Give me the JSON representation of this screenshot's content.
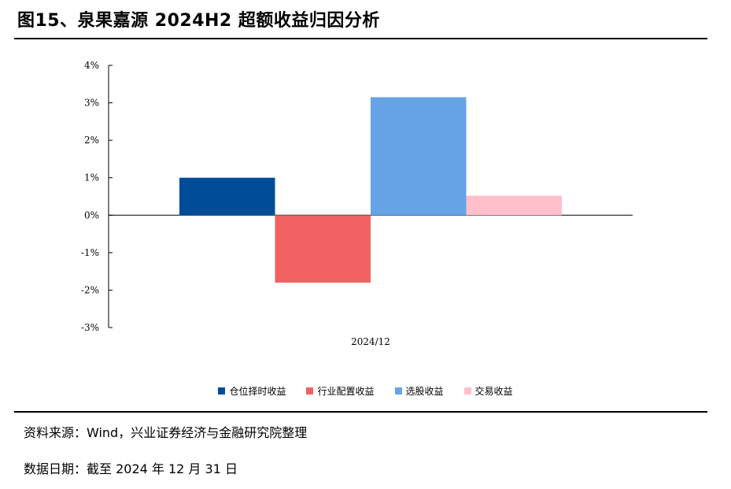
{
  "header": {
    "title": "图15、泉果嘉源 2024H2 超额收益归因分析"
  },
  "chart_data": {
    "type": "bar",
    "categories": [
      "2024/12"
    ],
    "series": [
      {
        "name": "仓位择时收益",
        "values": [
          1.0
        ],
        "color": "#004C99"
      },
      {
        "name": "行业配置收益",
        "values": [
          -1.8
        ],
        "color": "#F06262"
      },
      {
        "name": "选股收益",
        "values": [
          3.15
        ],
        "color": "#66A3E6"
      },
      {
        "name": "交易收益",
        "values": [
          0.52
        ],
        "color": "#FFBFCB"
      }
    ],
    "yticks": [
      "4%",
      "3%",
      "2%",
      "1%",
      "0%",
      "-1%",
      "-2%",
      "-3%"
    ],
    "ylim": [
      -3,
      4
    ],
    "title": "",
    "xlabel": "",
    "ylabel": "",
    "legend": "bottom",
    "grid": false
  },
  "footer": {
    "source": "资料来源：Wind，兴业证券经济与金融研究院整理",
    "date": "数据日期：截至 2024 年 12 月 31 日"
  }
}
